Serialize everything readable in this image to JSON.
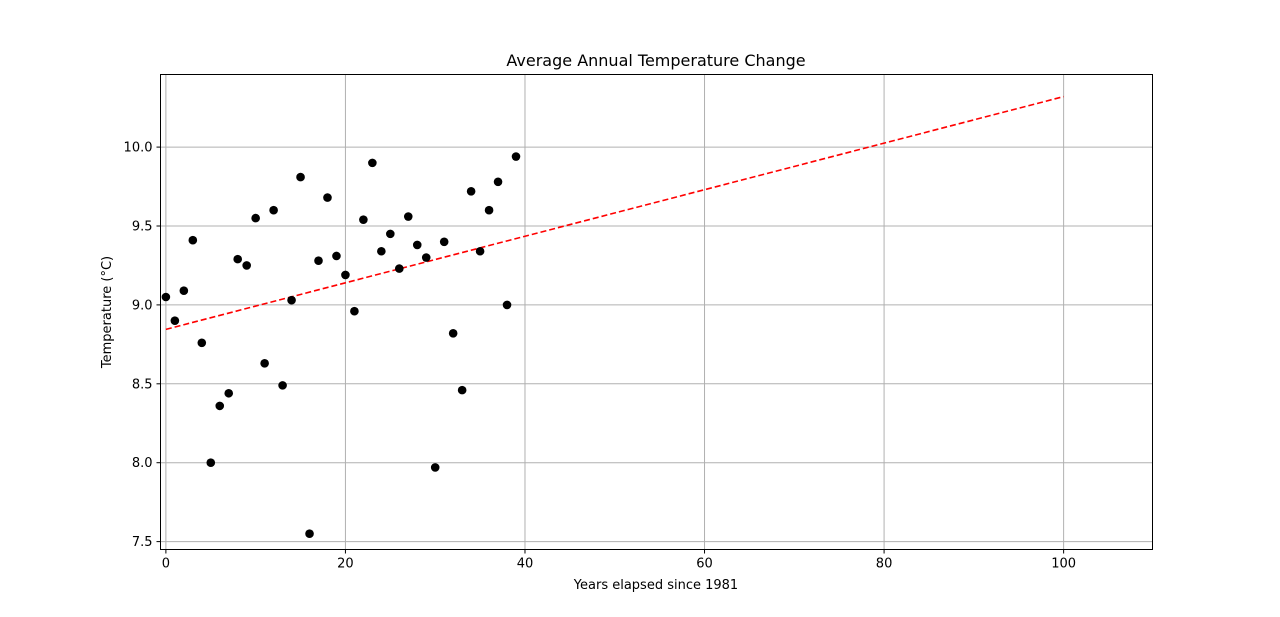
{
  "chart_data": {
    "type": "scatter",
    "title": "Average Annual Temperature Change",
    "xlabel": "Years elapsed since 1981",
    "ylabel": "Temperature (°C)",
    "xlim": [
      -0.6,
      109.9
    ],
    "ylim": [
      7.45,
      10.46
    ],
    "xticks": [
      0,
      20,
      40,
      60,
      80,
      100
    ],
    "yticks": [
      7.5,
      8.0,
      8.5,
      9.0,
      9.5,
      10.0
    ],
    "ytick_labels": [
      "7.5",
      "8.0",
      "8.5",
      "9.0",
      "9.5",
      "10.0"
    ],
    "grid": true,
    "points": {
      "color": "#000000",
      "x": [
        0,
        1,
        2,
        3,
        4,
        5,
        6,
        7,
        8,
        9,
        10,
        11,
        12,
        13,
        14,
        15,
        16,
        17,
        18,
        19,
        20,
        21,
        22,
        23,
        24,
        25,
        26,
        27,
        28,
        29,
        30,
        31,
        32,
        33,
        34,
        35,
        36,
        37,
        38,
        39
      ],
      "y": [
        9.05,
        8.9,
        9.09,
        9.41,
        8.76,
        8.0,
        8.36,
        8.44,
        9.29,
        9.25,
        9.55,
        8.63,
        9.6,
        8.49,
        9.03,
        9.81,
        7.55,
        9.28,
        9.68,
        9.31,
        9.19,
        8.96,
        9.54,
        9.9,
        9.34,
        9.45,
        9.23,
        9.56,
        9.38,
        9.3,
        7.97,
        9.4,
        8.82,
        8.46,
        9.72,
        9.34,
        9.6,
        9.78,
        9.0,
        9.94
      ]
    },
    "trendline": {
      "color": "#ff0000",
      "style": "dashed",
      "x": [
        0,
        100
      ],
      "y": [
        8.845,
        10.32
      ]
    }
  }
}
